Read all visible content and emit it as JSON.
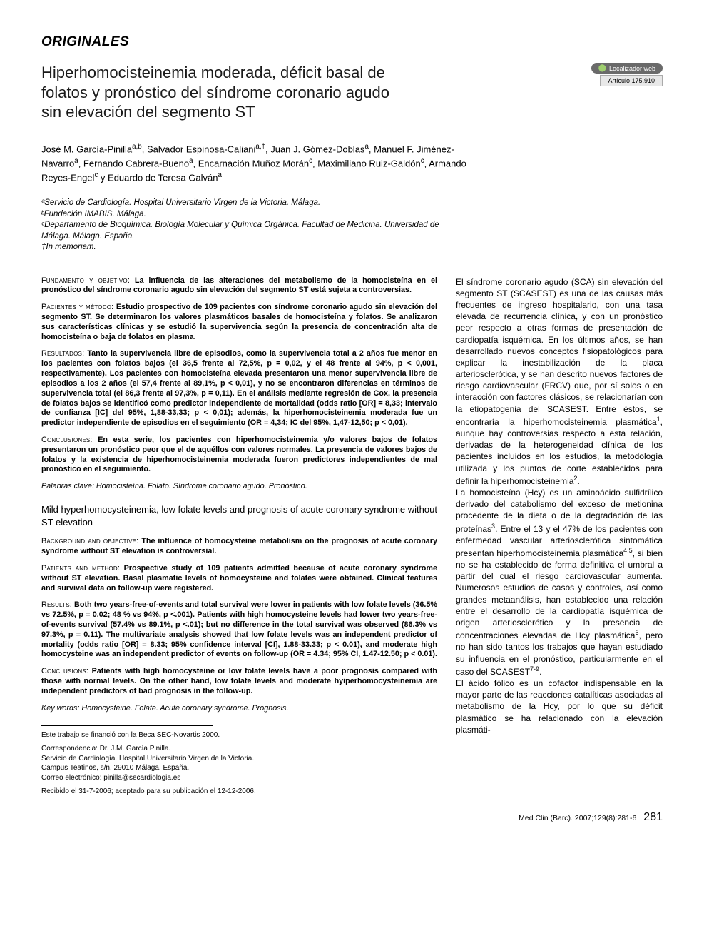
{
  "section_label": "ORIGINALES",
  "title": "Hiperhomocisteinemia moderada, déficit basal de folatos y pronóstico del síndrome coronario agudo sin elevación del segmento ST",
  "web_locator": {
    "label": "Localizador web",
    "article": "Artículo 175.910"
  },
  "authors_html": "José M. García-Pinilla<sup>a,b</sup>, Salvador Espinosa-Caliani<sup>a,†</sup>, Juan J. Gómez-Doblas<sup>a</sup>, Manuel F. Jiménez-Navarro<sup>a</sup>, Fernando Cabrera-Bueno<sup>a</sup>, Encarnación Muñoz Morán<sup>c</sup>, Maximiliano Ruiz-Galdón<sup>c</sup>, Armando Reyes-Engel<sup>c</sup> y Eduardo de Teresa Galván<sup>a</sup>",
  "affiliations": [
    "ªServicio de Cardiología. Hospital Universitario Virgen de la Victoria. Málaga.",
    "ᵇFundación IMABIS. Málaga.",
    "ᶜDepartamento de Bioquímica. Biología Molecular y Química Orgánica. Facultad de Medicina. Universidad de Málaga. Málaga. España.",
    "†In memoriam."
  ],
  "abstract_es": {
    "fundamento": {
      "lead": "Fundamento y objetivo:",
      "text": "La influencia de las alteraciones del metabolismo de la homocisteína en el pronóstico del síndrome coronario agudo sin elevación del segmento ST está sujeta a controversias."
    },
    "pacientes": {
      "lead": "Pacientes y método:",
      "text": "Estudio prospectivo de 109 pacientes con síndrome coronario agudo sin elevación del segmento ST. Se determinaron los valores plasmáticos basales de homocisteína y folatos. Se analizaron sus características clínicas y se estudió la supervivencia según la presencia de concentración alta de homocisteína o baja de folatos en plasma."
    },
    "resultados": {
      "lead": "Resultados:",
      "text": "Tanto la supervivencia libre de episodios, como la supervivencia total a 2 años fue menor en los pacientes con folatos bajos (el 36,5 frente al 72,5%, p = 0,02, y el 48 frente al 94%, p < 0,001, respectivamente). Los pacientes con homocisteína elevada presentaron una menor supervivencia libre de episodios a los 2 años (el 57,4 frente al 89,1%, p < 0,01), y no se encontraron diferencias en términos de supervivencia total (el 86,3 frente al 97,3%, p = 0,11). En el análisis mediante regresión de Cox, la presencia de folatos bajos se identificó como predictor independiente de mortalidad (odds ratio [OR] = 8,33; intervalo de confianza [IC] del 95%, 1,88-33,33; p < 0,01); además, la hiperhomocisteinemia moderada fue un predictor independiente de episodios en el seguimiento (OR = 4,34; IC del 95%, 1,47-12,50; p < 0,01)."
    },
    "conclusiones": {
      "lead": "Conclusiones:",
      "text": "En esta serie, los pacientes con hiperhomocisteinemia y/o valores bajos de folatos presentaron un pronóstico peor que el de aquéllos con valores normales. La presencia de valores bajos de folatos y la existencia de hiperhomocisteinemia moderada fueron predictores independientes de mal pronóstico en el seguimiento."
    }
  },
  "keywords_es": {
    "lead": "Palabras clave:",
    "text": "Homocisteína. Folato. Síndrome coronario agudo. Pronóstico."
  },
  "title_en": "Mild hyperhomocysteinemia, low folate levels and prognosis of acute coronary syndrome without ST elevation",
  "abstract_en": {
    "background": {
      "lead": "Background and objective:",
      "text": "The influence of homocysteine metabolism on the prognosis of acute coronary syndrome without ST elevation is controversial."
    },
    "patients": {
      "lead": "Patients and method:",
      "text": "Prospective study of 109 patients admitted because of acute coronary syndrome without ST elevation. Basal plasmatic levels of homocysteine and folates were obtained. Clinical features and survival data on follow-up were registered."
    },
    "results": {
      "lead": "Results:",
      "text": "Both two years-free-of-events and total survival were lower in patients with low folate levels (36.5% vs 72.5%, p = 0.02; 48 % vs 94%, p <.001). Patients with high homocysteine levels had lower two years-free-of-events survival (57.4% vs 89.1%, p <.01); but no difference in the total survival was observed (86.3% vs 97.3%, p = 0.11). The multivariate analysis showed that low folate levels was an independent predictor of mortality (odds ratio [OR] = 8.33; 95% confidence interval [CI], 1.88-33.33; p < 0.01), and moderate high homocysteine was an independent predictor of events on follow-up (OR = 4.34; 95% CI, 1.47-12.50; p < 0.01)."
    },
    "conclusions": {
      "lead": "Conclusions:",
      "text": "Patients with high homocysteine or low folate levels have a poor prognosis compared with those with normal levels. On the other hand, low folate levels and moderate hyiperhomocysteinemia are independent predictors of bad prognosis in the follow-up."
    }
  },
  "keywords_en": {
    "lead": "Key words:",
    "text": "Homocysteine. Folate. Acute coronary syndrome. Prognosis."
  },
  "footnotes": {
    "funding": "Este trabajo se financió con la Beca SEC-Novartis 2000.",
    "correspondence": [
      "Correspondencia: Dr. J.M. García Pinilla.",
      "Servicio de Cardiología. Hospital Universitario Virgen de la Victoria.",
      "Campus Teatinos, s/n. 29010 Málaga. España.",
      "Correo electrónico: pinilla@secardiologia.es"
    ],
    "received": "Recibido el 31-7-2006; aceptado para su publicación el 12-12-2006."
  },
  "body_right_html": "El síndrome coronario agudo (SCA) sin elevación del segmento ST (SCASEST) es una de las causas más frecuentes de ingreso hospitalario, con una tasa elevada de recurrencia clínica, y con un pronóstico peor respecto a otras formas de presentación de cardiopatía isquémica. En los últimos años, se han desarrollado nuevos conceptos fisiopatológicos para explicar la inestabilización de la placa arteriosclerótica, y se han descrito nuevos factores de riesgo cardiovascular (FRCV) que, por sí solos o en interacción con factores clásicos, se relacionarían con la etiopatogenia del SCASEST. Entre éstos, se encontraría la hiperhomocisteinemia plasmática<sup>1</sup>, aunque hay controversias respecto a esta relación, derivadas de la heterogeneidad clínica de los pacientes incluidos en los estudios, la metodología utilizada y los puntos de corte establecidos para definir la hiperhomocisteinemia<sup>2</sup>.<br>La homocisteína (Hcy) es un aminoácido sulfidrílico derivado del catabolismo del exceso de metionina procedente de la dieta o de la degradación de las proteínas<sup>3</sup>. Entre el 13 y el 47% de los pacientes con enfermedad vascular arteriosclerótica sintomática presentan hiperhomocisteinemia plasmática<sup>4,5</sup>, si bien no se ha establecido de forma definitiva el umbral a partir del cual el riesgo cardiovascular aumenta. Numerosos estudios de casos y controles, así como grandes metaanálisis, han establecido una relación entre el desarrollo de la cardiopatía isquémica de origen arteriosclerótico y la presencia de concentraciones elevadas de Hcy plasmática<sup>6</sup>, pero no han sido tantos los trabajos que hayan estudiado su influencia en el pronóstico, particularmente en el caso del SCASEST<sup>7-9</sup>.<br>El ácido fólico es un cofactor indispensable en la mayor parte de las reacciones catalíticas asociadas al metabolismo de la Hcy, por lo que su déficit plasmático se ha relacionado con la elevación plasmáti-",
  "footer": {
    "citation": "Med Clin (Barc). 2007;129(8):281-6",
    "page": "281"
  },
  "colors": {
    "text": "#000000",
    "bg": "#ffffff",
    "badge_bg": "#6a6a6a",
    "badge_dot": "#9fcf6f",
    "article_bg": "#e8e8e8"
  }
}
